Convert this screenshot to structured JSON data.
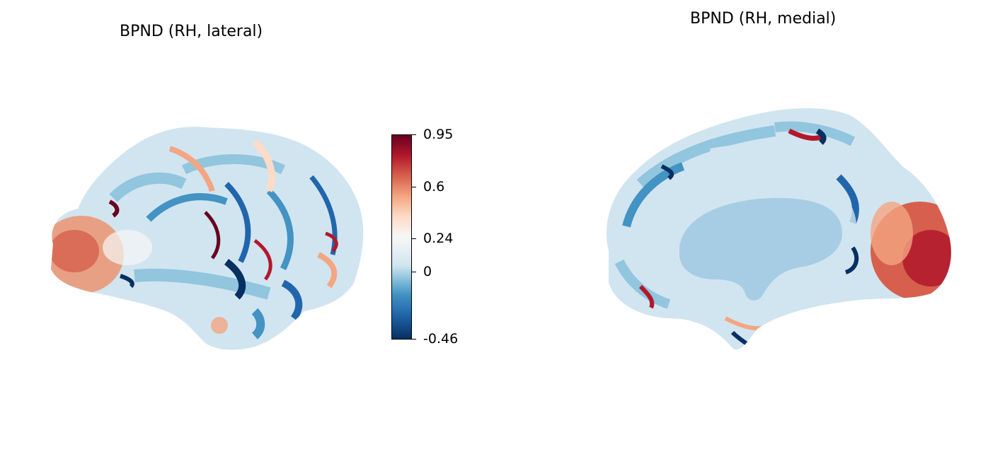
{
  "panels": {
    "lateral": {
      "title": "BPND (RH, lateral)"
    },
    "medial": {
      "title": "BPND (RH, medial)"
    }
  },
  "colorbar": {
    "colormap": "RdBu_r",
    "min": -0.46,
    "max": 0.95,
    "ticks": [
      "0.95",
      "0.6",
      "0.24",
      "0",
      "-0.46"
    ],
    "colors": {
      "low": "#053061",
      "mid_low": "#4393c3",
      "mid": "#f7f7f7",
      "mid_high": "#f4a582",
      "high": "#67001f"
    }
  }
}
